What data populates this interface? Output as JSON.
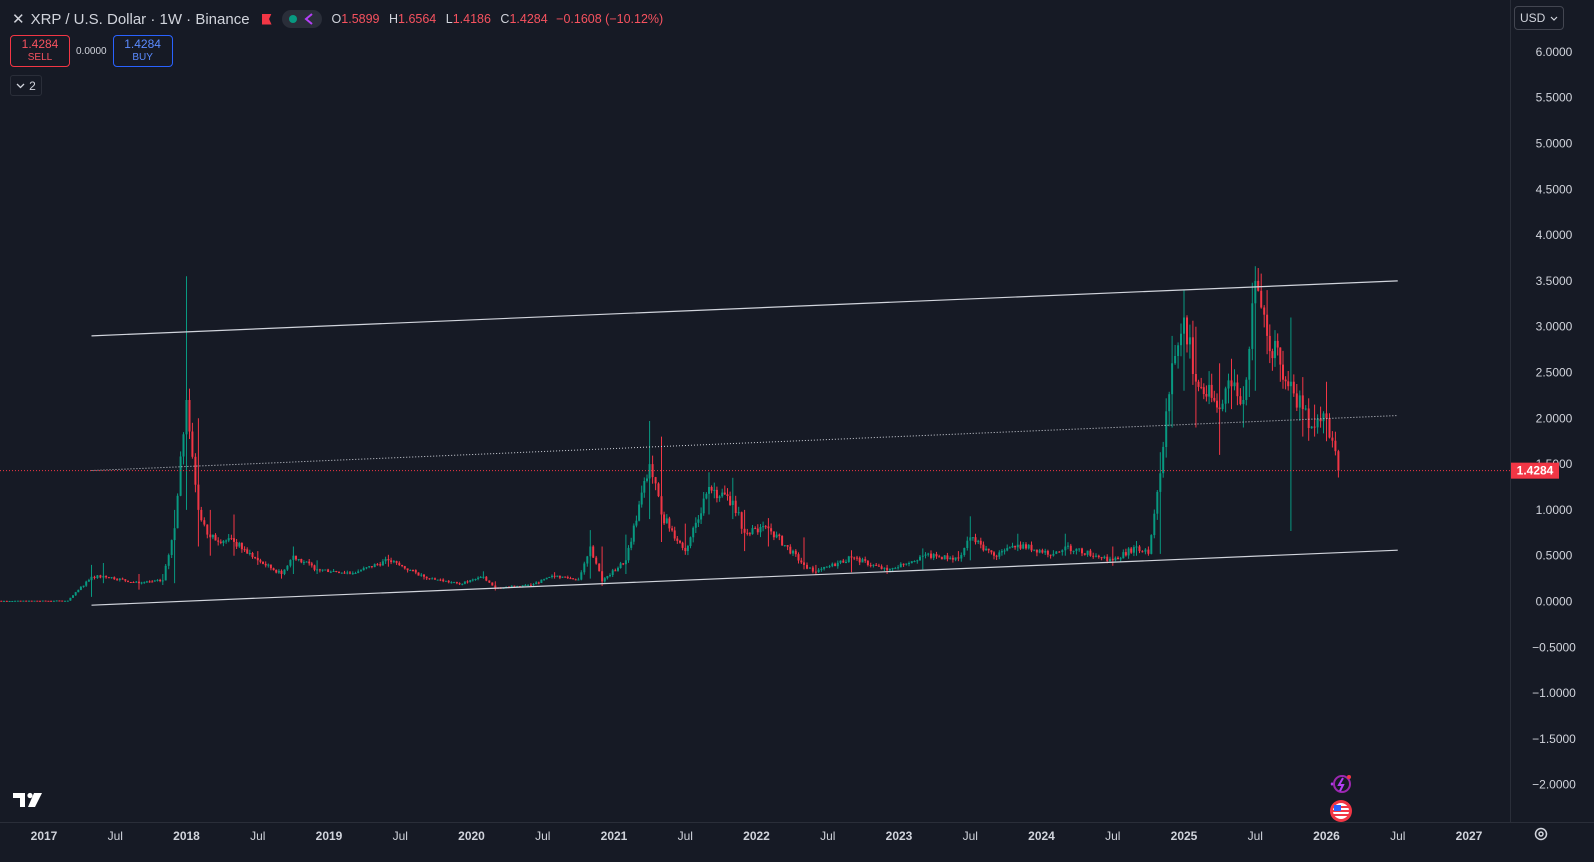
{
  "legend": {
    "symbol_title": "XRP / U.S. Dollar · 1W · Binance",
    "ohlc": [
      {
        "key": "O",
        "value": "1.5899"
      },
      {
        "key": "H",
        "value": "1.6564"
      },
      {
        "key": "L",
        "value": "1.4186"
      },
      {
        "key": "C",
        "value": "1.4284"
      }
    ],
    "change": "−0.1608 (−10.12%)"
  },
  "trade": {
    "sell_price": "1.4284",
    "sell_label": "SELL",
    "spread": "0.0000",
    "buy_price": "1.4284",
    "buy_label": "BUY"
  },
  "indicators_toggle": {
    "count": "2"
  },
  "currency": {
    "label": "USD"
  },
  "price_axis": {
    "ticks": [
      "6.0000",
      "5.5000",
      "5.0000",
      "4.5000",
      "4.0000",
      "3.5000",
      "3.0000",
      "2.5000",
      "2.0000",
      "1.5000",
      "1.0000",
      "0.5000",
      "0.0000",
      "−0.5000",
      "−1.0000",
      "−1.5000",
      "−2.0000"
    ],
    "last_price_label": "1.4284"
  },
  "time_axis": {
    "ticks": [
      "2017",
      "Jul",
      "2018",
      "Jul",
      "2019",
      "Jul",
      "2020",
      "Jul",
      "2021",
      "Jul",
      "2022",
      "Jul",
      "2023",
      "Jul",
      "2024",
      "Jul",
      "2025",
      "Jul",
      "2026",
      "Jul",
      "2027"
    ]
  },
  "colors": {
    "up": "#089981",
    "down": "#f23645",
    "background": "#161a25",
    "channel_line": "#d1d4dc"
  },
  "chart_data": {
    "type": "candlestick",
    "title": "XRP / U.S. Dollar · 1W · Binance",
    "ylim": [
      -2.2,
      6.2
    ],
    "x_range": [
      "2016-08",
      "2027-03"
    ],
    "last_price": 1.4284,
    "pivots": [
      {
        "date": "2016-08",
        "close": 0.006,
        "high": 0.007,
        "low": 0.005
      },
      {
        "date": "2017-03",
        "close": 0.009,
        "high": 0.01,
        "low": 0.005
      },
      {
        "date": "2017-05",
        "close": 0.27,
        "high": 0.4,
        "low": 0.05
      },
      {
        "date": "2017-06",
        "close": 0.28,
        "high": 0.42,
        "low": 0.2
      },
      {
        "date": "2017-09",
        "close": 0.2,
        "high": 0.3,
        "low": 0.13
      },
      {
        "date": "2017-11",
        "close": 0.23,
        "high": 0.3,
        "low": 0.18
      },
      {
        "date": "2017-12",
        "close": 0.8,
        "high": 1.0,
        "low": 0.2
      },
      {
        "date": "2018-01",
        "close": 2.2,
        "high": 3.55,
        "low": 1.0
      },
      {
        "date": "2018-02",
        "close": 1.0,
        "high": 2.0,
        "low": 0.6
      },
      {
        "date": "2018-03",
        "close": 0.7,
        "high": 1.0,
        "low": 0.5
      },
      {
        "date": "2018-05",
        "close": 0.65,
        "high": 0.95,
        "low": 0.5
      },
      {
        "date": "2018-07",
        "close": 0.45,
        "high": 0.55,
        "low": 0.4
      },
      {
        "date": "2018-09",
        "close": 0.3,
        "high": 0.35,
        "low": 0.25
      },
      {
        "date": "2018-10",
        "close": 0.5,
        "high": 0.6,
        "low": 0.3
      },
      {
        "date": "2018-12",
        "close": 0.35,
        "high": 0.45,
        "low": 0.3
      },
      {
        "date": "2019-03",
        "close": 0.31,
        "high": 0.33,
        "low": 0.29
      },
      {
        "date": "2019-06",
        "close": 0.45,
        "high": 0.51,
        "low": 0.38
      },
      {
        "date": "2019-09",
        "close": 0.27,
        "high": 0.3,
        "low": 0.24
      },
      {
        "date": "2019-12",
        "close": 0.19,
        "high": 0.21,
        "low": 0.18
      },
      {
        "date": "2020-02",
        "close": 0.27,
        "high": 0.33,
        "low": 0.25
      },
      {
        "date": "2020-03",
        "close": 0.15,
        "high": 0.22,
        "low": 0.12
      },
      {
        "date": "2020-06",
        "close": 0.18,
        "high": 0.2,
        "low": 0.17
      },
      {
        "date": "2020-08",
        "close": 0.28,
        "high": 0.32,
        "low": 0.25
      },
      {
        "date": "2020-10",
        "close": 0.24,
        "high": 0.26,
        "low": 0.23
      },
      {
        "date": "2020-11",
        "close": 0.6,
        "high": 0.78,
        "low": 0.25
      },
      {
        "date": "2020-12",
        "close": 0.22,
        "high": 0.6,
        "low": 0.17
      },
      {
        "date": "2021-02",
        "close": 0.45,
        "high": 0.73,
        "low": 0.3
      },
      {
        "date": "2021-04",
        "close": 1.5,
        "high": 1.97,
        "low": 0.9
      },
      {
        "date": "2021-05",
        "close": 0.95,
        "high": 1.8,
        "low": 0.65
      },
      {
        "date": "2021-07",
        "close": 0.55,
        "high": 0.85,
        "low": 0.51
      },
      {
        "date": "2021-09",
        "close": 1.25,
        "high": 1.41,
        "low": 0.95
      },
      {
        "date": "2021-11",
        "close": 1.1,
        "high": 1.35,
        "low": 0.9
      },
      {
        "date": "2021-12",
        "close": 0.75,
        "high": 1.0,
        "low": 0.55
      },
      {
        "date": "2022-02",
        "close": 0.8,
        "high": 0.91,
        "low": 0.6
      },
      {
        "date": "2022-05",
        "close": 0.4,
        "high": 0.7,
        "low": 0.35
      },
      {
        "date": "2022-06",
        "close": 0.32,
        "high": 0.4,
        "low": 0.29
      },
      {
        "date": "2022-09",
        "close": 0.48,
        "high": 0.56,
        "low": 0.32
      },
      {
        "date": "2022-12",
        "close": 0.34,
        "high": 0.4,
        "low": 0.3
      },
      {
        "date": "2023-03",
        "close": 0.5,
        "high": 0.58,
        "low": 0.35
      },
      {
        "date": "2023-06",
        "close": 0.47,
        "high": 0.55,
        "low": 0.44
      },
      {
        "date": "2023-07",
        "close": 0.7,
        "high": 0.93,
        "low": 0.45
      },
      {
        "date": "2023-09",
        "close": 0.5,
        "high": 0.55,
        "low": 0.46
      },
      {
        "date": "2023-11",
        "close": 0.62,
        "high": 0.74,
        "low": 0.55
      },
      {
        "date": "2024-02",
        "close": 0.52,
        "high": 0.56,
        "low": 0.49
      },
      {
        "date": "2024-03",
        "close": 0.6,
        "high": 0.74,
        "low": 0.5
      },
      {
        "date": "2024-07",
        "close": 0.45,
        "high": 0.6,
        "low": 0.39
      },
      {
        "date": "2024-09",
        "close": 0.6,
        "high": 0.66,
        "low": 0.5
      },
      {
        "date": "2024-10",
        "close": 0.52,
        "high": 0.6,
        "low": 0.5
      },
      {
        "date": "2024-11",
        "close": 1.4,
        "high": 1.63,
        "low": 0.52
      },
      {
        "date": "2024-12",
        "close": 2.6,
        "high": 2.9,
        "low": 1.9
      },
      {
        "date": "2025-01",
        "close": 3.1,
        "high": 3.4,
        "low": 2.3
      },
      {
        "date": "2025-02",
        "close": 2.4,
        "high": 3.0,
        "low": 1.9
      },
      {
        "date": "2025-04",
        "close": 2.1,
        "high": 2.6,
        "low": 1.6
      },
      {
        "date": "2025-05",
        "close": 2.35,
        "high": 2.65,
        "low": 2.1
      },
      {
        "date": "2025-06",
        "close": 2.2,
        "high": 2.35,
        "low": 1.9
      },
      {
        "date": "2025-07",
        "close": 3.5,
        "high": 3.66,
        "low": 2.3
      },
      {
        "date": "2025-08",
        "close": 2.9,
        "high": 3.4,
        "low": 2.7
      },
      {
        "date": "2025-10",
        "close": 2.4,
        "high": 3.1,
        "low": 0.77
      },
      {
        "date": "2025-11",
        "close": 2.1,
        "high": 2.45,
        "low": 1.8
      },
      {
        "date": "2025-12",
        "close": 1.9,
        "high": 2.15,
        "low": 1.8
      },
      {
        "date": "2026-01",
        "close": 2.0,
        "high": 2.4,
        "low": 1.75
      },
      {
        "date": "2026-02",
        "close": 1.4284,
        "high": 1.6564,
        "low": 1.4186
      }
    ],
    "trend_lines": [
      {
        "name": "upper",
        "from": {
          "date": "2017-05",
          "price": 2.9
        },
        "to": {
          "date": "2026-07",
          "price": 3.5
        },
        "style": "solid"
      },
      {
        "name": "middle",
        "from": {
          "date": "2017-05",
          "price": 1.43
        },
        "to": {
          "date": "2026-07",
          "price": 2.03
        },
        "style": "dotted"
      },
      {
        "name": "lower",
        "from": {
          "date": "2017-05",
          "price": -0.04
        },
        "to": {
          "date": "2026-07",
          "price": 0.56
        },
        "style": "solid"
      }
    ]
  }
}
